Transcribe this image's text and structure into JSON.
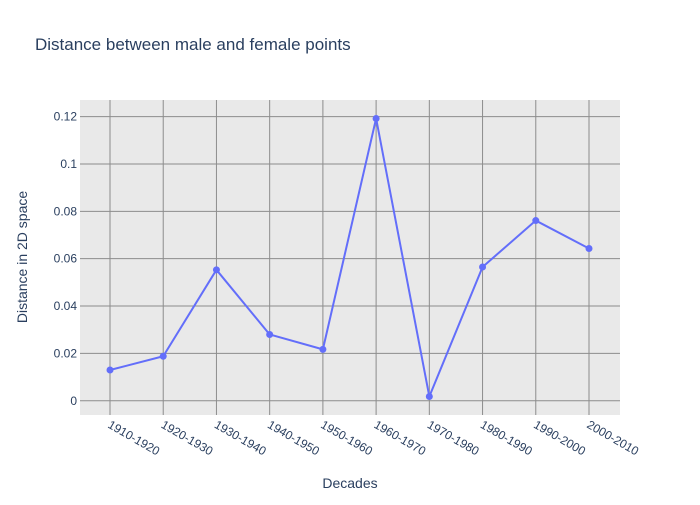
{
  "chart_data": {
    "type": "line",
    "title": "Distance between male and female points",
    "xlabel": "Decades",
    "ylabel": "Distance in 2D space",
    "categories": [
      "1910-1920",
      "1920-1930",
      "1930-1940",
      "1940-1950",
      "1950-1960",
      "1960-1970",
      "1970-1980",
      "1980-1990",
      "1990-2000",
      "2000-2010"
    ],
    "values": [
      0.013,
      0.0188,
      0.0553,
      0.028,
      0.0217,
      0.1192,
      0.0018,
      0.0565,
      0.0761,
      0.0643
    ],
    "ylim": [
      -0.006,
      0.127
    ],
    "yticks": [
      0,
      0.02,
      0.04,
      0.06,
      0.08,
      0.1,
      0.12
    ],
    "ytick_labels": [
      "0",
      "0.02",
      "0.04",
      "0.06",
      "0.08",
      "0.1",
      "0.12"
    ],
    "grid": true,
    "colors": {
      "line": "#636efa",
      "plot_bg": "#e9e9e9",
      "grid": "#8c8c8c",
      "text": "#2a3f5f"
    }
  }
}
